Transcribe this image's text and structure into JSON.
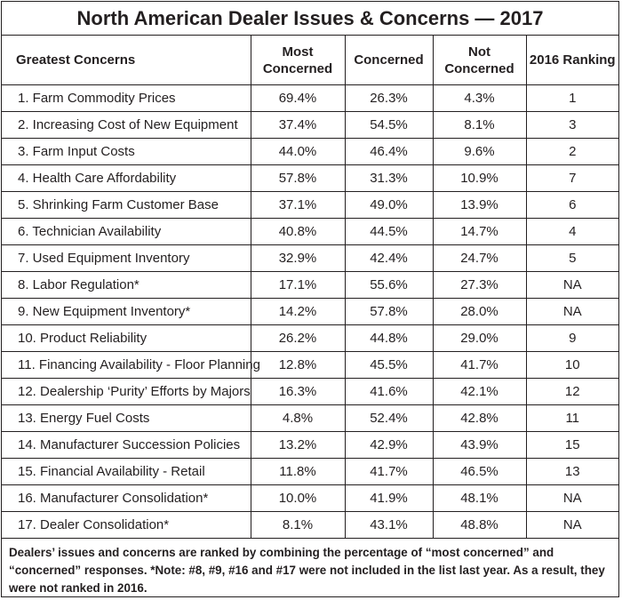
{
  "chart_data": {
    "type": "table",
    "title": "North American Dealer Issues & Concerns — 2017",
    "columns": [
      "Greatest Concerns",
      "Most Concerned",
      "Concerned",
      "Not Concerned",
      "2016 Ranking"
    ],
    "rows": [
      [
        "1. Farm Commodity Prices",
        "69.4%",
        "26.3%",
        "4.3%",
        "1"
      ],
      [
        "2. Increasing Cost of New Equipment",
        "37.4%",
        "54.5%",
        "8.1%",
        "3"
      ],
      [
        "3. Farm Input Costs",
        "44.0%",
        "46.4%",
        "9.6%",
        "2"
      ],
      [
        "4. Health Care Affordability",
        "57.8%",
        "31.3%",
        "10.9%",
        "7"
      ],
      [
        "5. Shrinking Farm Customer Base",
        "37.1%",
        "49.0%",
        "13.9%",
        "6"
      ],
      [
        "6. Technician Availability",
        "40.8%",
        "44.5%",
        "14.7%",
        "4"
      ],
      [
        "7. Used Equipment Inventory",
        "32.9%",
        "42.4%",
        "24.7%",
        "5"
      ],
      [
        "8. Labor Regulation*",
        "17.1%",
        "55.6%",
        "27.3%",
        "NA"
      ],
      [
        "9. New Equipment Inventory*",
        "14.2%",
        "57.8%",
        "28.0%",
        "NA"
      ],
      [
        "10. Product Reliability",
        "26.2%",
        "44.8%",
        "29.0%",
        "9"
      ],
      [
        "11. Financing Availability - Floor Planning",
        "12.8%",
        "45.5%",
        "41.7%",
        "10"
      ],
      [
        "12. Dealership ‘Purity’ Efforts by Majors",
        "16.3%",
        "41.6%",
        "42.1%",
        "12"
      ],
      [
        "13. Energy Fuel Costs",
        "4.8%",
        "52.4%",
        "42.8%",
        "11"
      ],
      [
        "14. Manufacturer Succession Policies",
        "13.2%",
        "42.9%",
        "43.9%",
        "15"
      ],
      [
        "15. Financial Availability - Retail",
        "11.8%",
        "41.7%",
        "46.5%",
        "13"
      ],
      [
        "16. Manufacturer Consolidation*",
        "10.0%",
        "41.9%",
        "48.1%",
        "NA"
      ],
      [
        "17. Dealer Consolidation*",
        "8.1%",
        "43.1%",
        "48.8%",
        "NA"
      ]
    ],
    "note": "Dealers’ issues and concerns are ranked by combining the percentage of “most concerned” and “concerned” responses. *Note: #8, #9, #16 and #17 were not included in the list last year. As a result, they were not ranked in 2016."
  },
  "colors": {
    "text": "#231f20",
    "border": "#231f20",
    "background": "#ffffff"
  }
}
